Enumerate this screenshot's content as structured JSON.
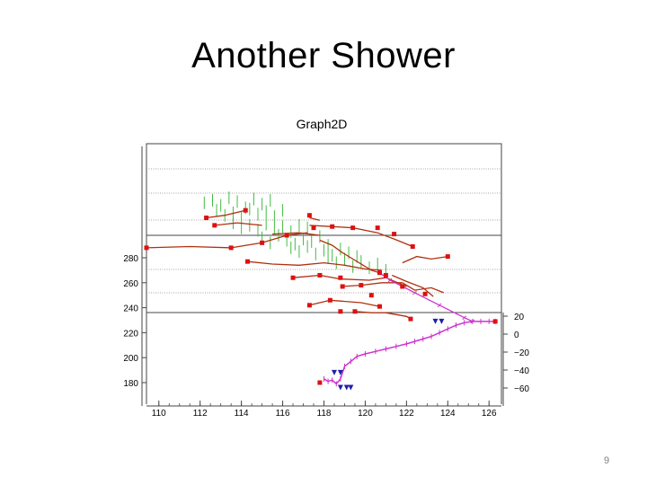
{
  "slide": {
    "title": "Another Shower",
    "page_number": "9"
  },
  "chart_data": {
    "type": "scatter",
    "title": "Graph2D",
    "xlabel": "",
    "ylabel": "",
    "xlim": [
      109.4,
      126.6
    ],
    "ylim": [
      175,
      295
    ],
    "x_ticks": [
      "110",
      "112",
      "114",
      "116",
      "118",
      "120",
      "122",
      "124",
      "126"
    ],
    "y_ticks": [
      "180",
      "200",
      "220",
      "240",
      "260",
      "280"
    ],
    "right_axis_ticks": [
      "20",
      "0",
      "−20",
      "−40",
      "−60"
    ],
    "grid": "horizontal",
    "colors": {
      "hit": "#dd1111",
      "track": "#b03010",
      "primary": "#cc33cc",
      "endpoint": "#2020aa",
      "deposit": "#44bb44",
      "frame": "#444444"
    },
    "deposits": {
      "name": "",
      "x": [
        112.2,
        112.6,
        113.0,
        113.4,
        113.8,
        114.2,
        114.6,
        115.0,
        115.4,
        112.8,
        113.2,
        113.6,
        114.0,
        114.4,
        114.8,
        115.2,
        115.6,
        116.0,
        113.6,
        114.0,
        114.4,
        114.8,
        115.2,
        115.6,
        116.0,
        116.4,
        116.8,
        117.2,
        115.0,
        115.4,
        115.8,
        116.2,
        116.6,
        117.0,
        117.4,
        117.8,
        118.2,
        116.4,
        116.8,
        117.2,
        117.6,
        118.0,
        118.4,
        118.8,
        119.2,
        119.6,
        118.2,
        118.6,
        119.0,
        119.4,
        119.8,
        120.2,
        120.6,
        121.0
      ],
      "y": [
        324,
        326,
        322,
        328,
        325,
        320,
        327,
        323,
        326,
        318,
        314,
        316,
        312,
        319,
        315,
        317,
        313,
        318,
        308,
        304,
        306,
        302,
        307,
        303,
        305,
        301,
        306,
        304,
        296,
        292,
        298,
        294,
        291,
        295,
        293,
        297,
        290,
        288,
        285,
        289,
        283,
        286,
        282,
        287,
        284,
        281,
        280,
        276,
        279,
        273,
        277,
        272,
        275,
        270
      ]
    },
    "primary_track": {
      "name": "",
      "x": [
        118.0,
        118.2,
        118.4,
        118.6,
        118.8,
        119.0,
        119.3,
        119.6,
        120.0,
        120.5,
        121.0,
        121.5,
        122.0,
        122.4,
        122.8,
        123.2,
        123.6,
        124.0,
        124.4,
        124.8,
        125.2,
        125.6,
        126.0,
        126.3
      ],
      "y": [
        183,
        181,
        182,
        179,
        183,
        193,
        197,
        201,
        203,
        205,
        207,
        209,
        211,
        213,
        215,
        217,
        220,
        223,
        226,
        228,
        229,
        229,
        229,
        229
      ]
    },
    "secondary_tracks": [
      {
        "name": "",
        "x": [
          112.3,
          113.2,
          114.2
        ],
        "y": [
          312,
          314,
          318
        ]
      },
      {
        "name": "",
        "x": [
          112.7,
          113.8,
          115.0
        ],
        "y": [
          306,
          308,
          306
        ]
      },
      {
        "name": "",
        "x": [
          109.4,
          111.5,
          113.5,
          115.0,
          116.2,
          117.2
        ],
        "y": [
          288,
          289,
          288,
          292,
          298,
          300
        ]
      },
      {
        "name": "",
        "x": [
          117.3,
          118.4,
          119.4,
          120.6,
          121.4,
          122.3
        ],
        "y": [
          306,
          305,
          304,
          300,
          295,
          289
        ]
      },
      {
        "name": "",
        "x": [
          117.8,
          118.4,
          118.9,
          119.3,
          119.9,
          120.3,
          120.7
        ],
        "y": [
          294,
          290,
          284,
          280,
          274,
          270,
          268
        ]
      },
      {
        "name": "",
        "x": [
          115.5,
          116.8,
          117.8
        ],
        "y": [
          299,
          300,
          298
        ]
      },
      {
        "name": "",
        "x": [
          117.3,
          117.8
        ],
        "y": [
          312,
          310
        ]
      },
      {
        "name": "",
        "x": [
          114.3,
          115.5,
          116.8,
          118.0,
          119.0,
          120.0,
          120.8
        ],
        "y": [
          277,
          275,
          274,
          276,
          274,
          271,
          270
        ]
      },
      {
        "name": "",
        "x": [
          116.5,
          117.8,
          118.8,
          120.2,
          121.0,
          122.0
        ],
        "y": [
          264,
          266,
          263,
          262,
          264,
          257
        ]
      },
      {
        "name": "",
        "x": [
          118.8,
          119.8,
          120.8,
          121.8,
          122.4,
          123.2,
          123.8
        ],
        "y": [
          257,
          258,
          260,
          260,
          254,
          256,
          252
        ]
      },
      {
        "name": "",
        "x": [
          117.3,
          118.3,
          119.8,
          120.7
        ],
        "y": [
          242,
          246,
          244,
          241
        ]
      },
      {
        "name": "",
        "x": [
          119.5,
          120.3,
          121.0,
          122.0,
          122.2
        ],
        "y": [
          237,
          236,
          236,
          233,
          231
        ]
      },
      {
        "name": "",
        "x": [
          121.8,
          122.5,
          123.2,
          124.0
        ],
        "y": [
          276,
          281,
          279,
          281
        ]
      },
      {
        "name": "",
        "x": [
          121.3,
          122.0,
          122.8,
          123.3
        ],
        "y": [
          266,
          261,
          256,
          249
        ]
      }
    ],
    "hits": {
      "name": "",
      "x": [
        112.3,
        112.7,
        114.2,
        117.3,
        117.5,
        109.4,
        113.5,
        115.0,
        116.2,
        118.4,
        119.4,
        120.6,
        121.4,
        121.8,
        122.3,
        122.9,
        124.0,
        114.3,
        116.5,
        117.8,
        118.8,
        118.9,
        120.7,
        121.0,
        117.3,
        119.8,
        120.3,
        118.3,
        118.8,
        120.7,
        119.5,
        122.2
      ],
      "y": [
        312,
        306,
        318,
        314,
        304,
        288,
        288,
        292,
        298,
        305,
        304,
        304,
        299,
        257,
        289,
        251,
        281,
        277,
        264,
        266,
        264,
        257,
        268,
        266,
        242,
        258,
        250,
        246,
        237,
        241,
        237,
        231
      ]
    },
    "endpoint_hits": {
      "name": "",
      "x": [
        117.8,
        126.3
      ],
      "y": [
        180,
        229
      ]
    },
    "endpoint_triangles": {
      "name": "",
      "x": [
        118.5,
        118.8,
        118.8,
        119.1,
        119.3,
        123.4,
        123.7
      ],
      "y": [
        188,
        188,
        176,
        176,
        176,
        229,
        229
      ]
    }
  }
}
